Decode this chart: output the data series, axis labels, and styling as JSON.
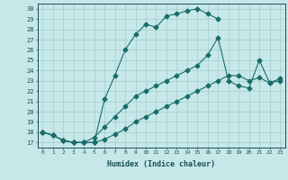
{
  "xlabel": "Humidex (Indice chaleur)",
  "xlim": [
    -0.5,
    23.5
  ],
  "ylim": [
    16.5,
    30.5
  ],
  "xticks": [
    0,
    1,
    2,
    3,
    4,
    5,
    6,
    7,
    8,
    9,
    10,
    11,
    12,
    13,
    14,
    15,
    16,
    17,
    18,
    19,
    20,
    21,
    22,
    23
  ],
  "yticks": [
    17,
    18,
    19,
    20,
    21,
    22,
    23,
    24,
    25,
    26,
    27,
    28,
    29,
    30
  ],
  "bg_color": "#c6e8e8",
  "grid_color": "#a4cccc",
  "line_color": "#1a6b6b",
  "curves": [
    {
      "x": [
        0,
        1,
        2,
        3,
        4,
        5,
        6,
        7,
        8,
        9,
        10,
        11,
        12,
        13,
        14,
        15,
        16,
        17
      ],
      "y": [
        18,
        17.7,
        17.2,
        17.0,
        17.0,
        17.0,
        21.2,
        23.5,
        26.0,
        27.5,
        28.5,
        28.2,
        29.3,
        29.5,
        29.8,
        30.0,
        29.5,
        29.0
      ]
    },
    {
      "x": [
        0,
        1,
        2,
        3,
        4,
        5,
        6,
        7,
        8,
        9,
        10,
        11,
        12,
        13,
        14,
        15,
        16,
        17,
        18,
        19,
        20,
        21,
        22,
        23
      ],
      "y": [
        18,
        17.7,
        17.2,
        17.0,
        17.0,
        17.5,
        18.5,
        19.5,
        20.5,
        21.5,
        22.0,
        22.5,
        23.0,
        23.5,
        24.0,
        24.5,
        25.5,
        27.2,
        23.0,
        22.5,
        22.3,
        25.0,
        22.8,
        23.2
      ]
    },
    {
      "x": [
        0,
        1,
        2,
        3,
        4,
        5,
        6,
        7,
        8,
        9,
        10,
        11,
        12,
        13,
        14,
        15,
        16,
        17,
        18,
        19,
        20,
        21,
        22,
        23
      ],
      "y": [
        18,
        17.7,
        17.2,
        17.0,
        17.0,
        17.0,
        17.3,
        17.8,
        18.3,
        19.0,
        19.5,
        20.0,
        20.5,
        21.0,
        21.5,
        22.0,
        22.5,
        23.0,
        23.5,
        23.5,
        23.0,
        23.3,
        22.8,
        23.0
      ]
    }
  ]
}
